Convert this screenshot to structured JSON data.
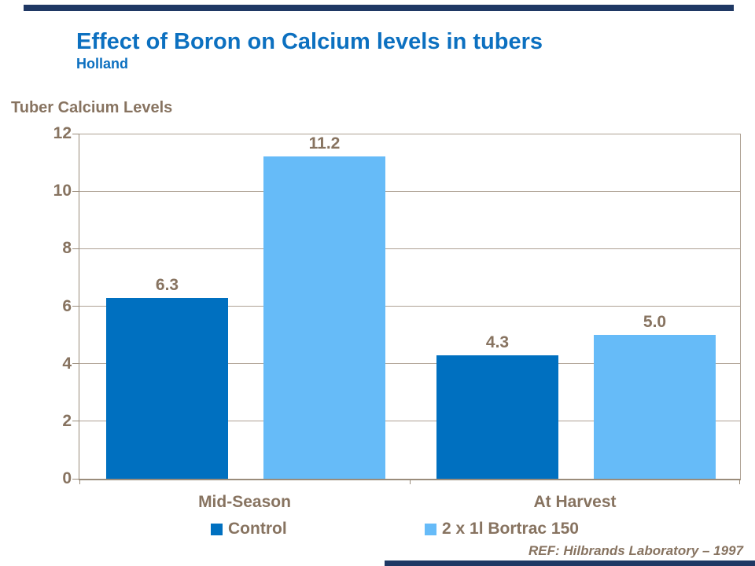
{
  "page": {
    "title": "Effect of Boron on Calcium levels in tubers",
    "subtitle": "Holland",
    "reference": "REF: Hilbrands Laboratory – 1997"
  },
  "colors": {
    "title_blue": "#0C70C0",
    "text_brown": "#877360",
    "gridline": "#AEA193",
    "axis": "#9A8C7B",
    "accent_navy": "#1F3864",
    "control_blue": "#0070C0",
    "bortrac_blue": "#66BBF8"
  },
  "chart_data": {
    "type": "bar",
    "title": "Tuber Calcium Levels",
    "xlabel": "",
    "ylabel": "Tuber Calcium Levels",
    "categories": [
      "Mid-Season",
      "At Harvest"
    ],
    "series": [
      {
        "name": "Control",
        "color": "#0070C0",
        "values": [
          6.3,
          4.3
        ],
        "labels": [
          "6.3",
          "4.3"
        ]
      },
      {
        "name": "2 x 1l Bortrac 150",
        "color": "#66BBF8",
        "values": [
          11.2,
          5.0
        ],
        "labels": [
          "11.2",
          "5.0"
        ]
      }
    ],
    "ylim": [
      0,
      12
    ],
    "yticks": [
      0,
      2,
      4,
      6,
      8,
      10,
      12
    ],
    "grid": true,
    "legend_position": "bottom",
    "data_labels_shown": true
  }
}
